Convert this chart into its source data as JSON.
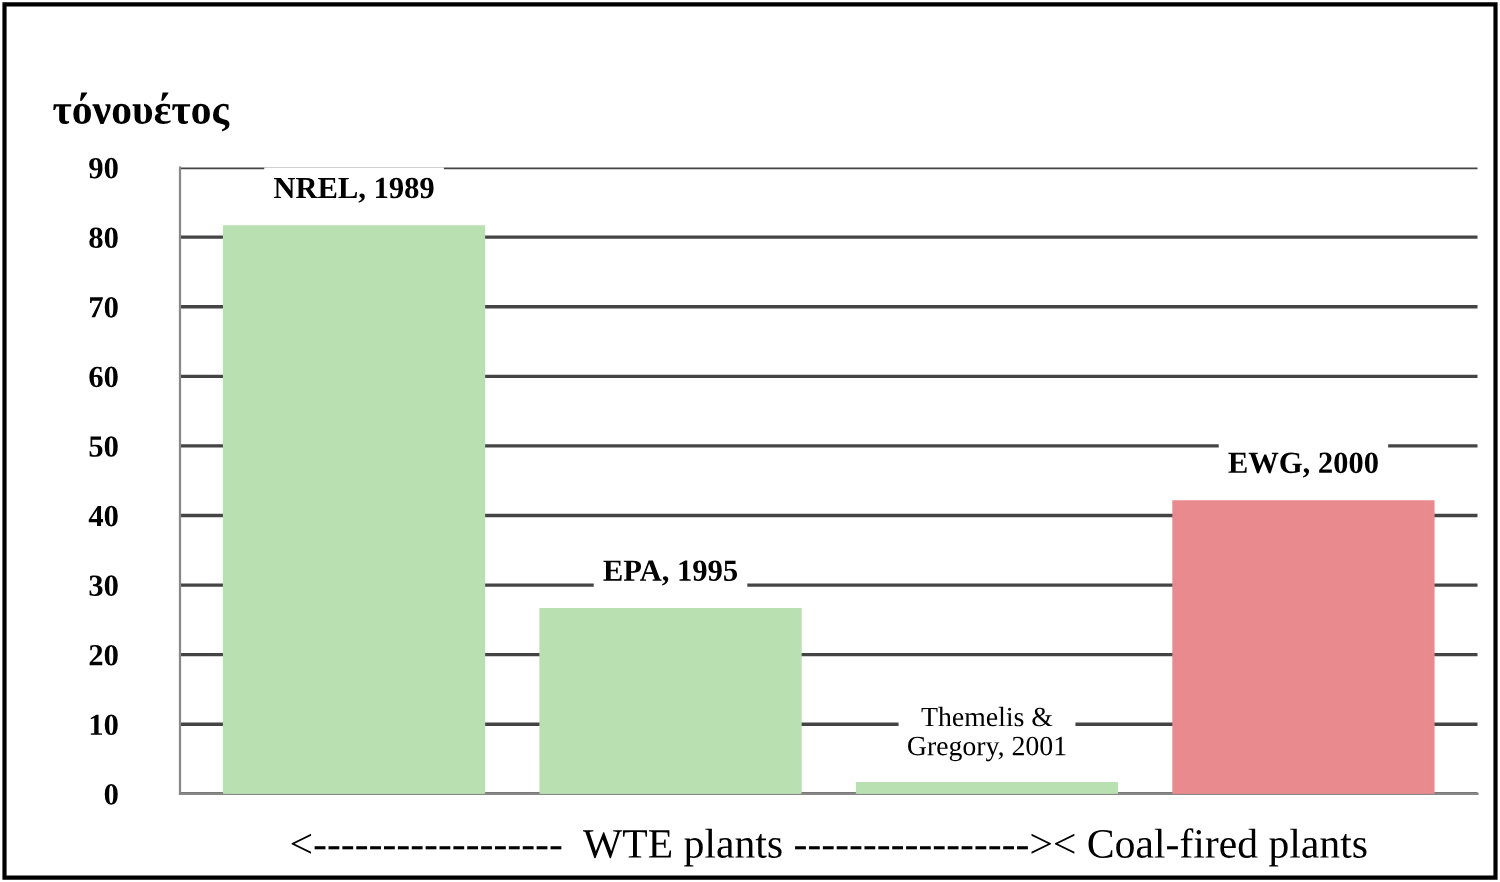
{
  "chart_data": {
    "type": "bar",
    "ylabel": "τόνουέτος",
    "xlabel": "<------------------  WTE plants ----------------->< Coal-fired plants",
    "categories": [
      "NREL, 1989",
      "EPA, 1995",
      "Themelis &\nGregory, 2001",
      "EWG, 2000"
    ],
    "values": [
      81.5,
      26.5,
      1.5,
      42
    ],
    "colors": [
      "#b8e0b0",
      "#b8e0b0",
      "#b8e0b0",
      "#e88a8e"
    ],
    "ylim": [
      0,
      90
    ],
    "yticks": [
      0,
      10,
      20,
      30,
      40,
      50,
      60,
      70,
      80,
      90
    ],
    "grid": "y"
  }
}
